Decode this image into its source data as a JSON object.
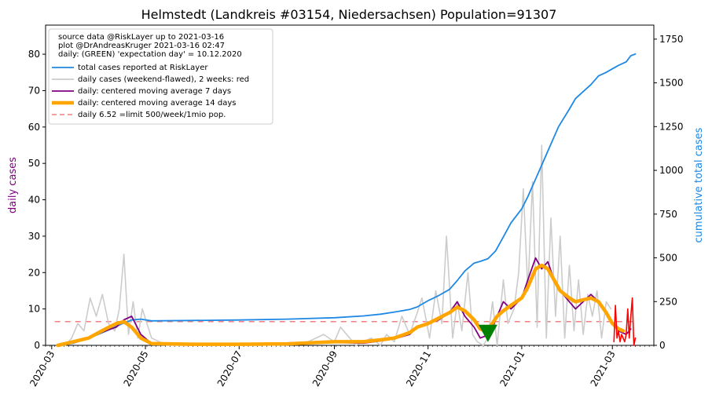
{
  "chart_data": {
    "type": "line",
    "title": "Helmstedt (Landkreis #03154, Niedersachsen) Population=91307",
    "ylabel_left": "daily cases",
    "ylabel_right": "cumulative total cases",
    "ylim_left": [
      0,
      88
    ],
    "ylim_right": [
      0,
      1830
    ],
    "yticks_left": [
      0,
      10,
      20,
      30,
      40,
      50,
      60,
      70,
      80
    ],
    "yticks_right": [
      0,
      250,
      500,
      750,
      1000,
      1250,
      1500,
      1750
    ],
    "xlim": [
      "2020-02-26",
      "2021-03-28"
    ],
    "xticks": [
      "2020-03",
      "2020-05",
      "2020-07",
      "2020-09",
      "2020-11",
      "2021-01",
      "2021-03"
    ],
    "grid": false,
    "legend_position": "top-left",
    "colors": {
      "total": "#1e88e5",
      "daily": "#cccccc",
      "ma7": "#800080",
      "ma14": "#ffa500",
      "limit": "#f08080",
      "recent": "#ff0000",
      "marker": "#008000"
    },
    "annotations": [
      "source data @RiskLayer up to 2021-03-16",
      "plot @DrAndreasKruger 2021-03-16 02:47",
      "daily: (GREEN) 'expectation day' = 10.12.2020"
    ],
    "legend": [
      {
        "key": "total",
        "label": "total cases reported at RiskLayer"
      },
      {
        "key": "daily",
        "label": "daily cases (weekend-flawed), 2 weeks: red"
      },
      {
        "key": "ma7",
        "label": "daily: centered moving average 7 days"
      },
      {
        "key": "ma14",
        "label": "daily: centered moving average 14 days"
      },
      {
        "key": "limit",
        "label": "daily 6.52 =limit 500/week/1mio pop."
      }
    ],
    "limit_value": 6.52,
    "limit_range": [
      "2020-03-03",
      "2021-03-16"
    ],
    "expectation_day": {
      "date": "2020-12-10",
      "value": 3.5
    },
    "total_cases": {
      "x": [
        "2020-03-05",
        "2020-03-15",
        "2020-03-25",
        "2020-04-05",
        "2020-04-15",
        "2020-04-22",
        "2020-04-28",
        "2020-05-05",
        "2020-06-01",
        "2020-07-01",
        "2020-08-01",
        "2020-09-01",
        "2020-09-20",
        "2020-10-01",
        "2020-10-10",
        "2020-10-20",
        "2020-10-25",
        "2020-11-01",
        "2020-11-08",
        "2020-11-15",
        "2020-11-20",
        "2020-11-25",
        "2020-12-01",
        "2020-12-05",
        "2020-12-10",
        "2020-12-15",
        "2020-12-20",
        "2020-12-25",
        "2021-01-01",
        "2021-01-05",
        "2021-01-10",
        "2021-01-15",
        "2021-01-20",
        "2021-01-25",
        "2021-02-01",
        "2021-02-05",
        "2021-02-10",
        "2021-02-15",
        "2021-02-20",
        "2021-02-25",
        "2021-03-01",
        "2021-03-05",
        "2021-03-10",
        "2021-03-13",
        "2021-03-16"
      ],
      "values": [
        0,
        12,
        40,
        80,
        120,
        145,
        150,
        140,
        142,
        145,
        150,
        158,
        168,
        178,
        190,
        205,
        220,
        255,
        285,
        320,
        370,
        425,
        470,
        480,
        495,
        540,
        620,
        700,
        780,
        850,
        950,
        1050,
        1150,
        1250,
        1350,
        1410,
        1450,
        1490,
        1540,
        1560,
        1580,
        1600,
        1620,
        1655,
        1665
      ]
    },
    "daily_cases": {
      "x": [
        "2020-03-10",
        "2020-03-14",
        "2020-03-18",
        "2020-03-22",
        "2020-03-26",
        "2020-03-30",
        "2020-04-03",
        "2020-04-07",
        "2020-04-11",
        "2020-04-14",
        "2020-04-17",
        "2020-04-20",
        "2020-04-23",
        "2020-04-26",
        "2020-04-29",
        "2020-05-05",
        "2020-05-15",
        "2020-06-15",
        "2020-07-15",
        "2020-08-15",
        "2020-08-25",
        "2020-09-01",
        "2020-09-05",
        "2020-09-15",
        "2020-09-25",
        "2020-10-01",
        "2020-10-05",
        "2020-10-10",
        "2020-10-15",
        "2020-10-20",
        "2020-10-25",
        "2020-10-28",
        "2020-11-02",
        "2020-11-06",
        "2020-11-10",
        "2020-11-13",
        "2020-11-17",
        "2020-11-20",
        "2020-11-23",
        "2020-11-27",
        "2020-11-30",
        "2020-12-03",
        "2020-12-07",
        "2020-12-10",
        "2020-12-13",
        "2020-12-16",
        "2020-12-20",
        "2020-12-23",
        "2020-12-27",
        "2020-12-30",
        "2021-01-02",
        "2021-01-05",
        "2021-01-08",
        "2021-01-11",
        "2021-01-14",
        "2021-01-17",
        "2021-01-20",
        "2021-01-23",
        "2021-01-26",
        "2021-01-29",
        "2021-02-01",
        "2021-02-04",
        "2021-02-07",
        "2021-02-10",
        "2021-02-13",
        "2021-02-16",
        "2021-02-19",
        "2021-02-22",
        "2021-02-25",
        "2021-02-28"
      ],
      "values": [
        0,
        2,
        6,
        4,
        13,
        8,
        14,
        6,
        4,
        10,
        25,
        3,
        12,
        2,
        10,
        2,
        0,
        0,
        0,
        1,
        3,
        1,
        5,
        0,
        2,
        0,
        3,
        1,
        8,
        3,
        9,
        13,
        2,
        15,
        6,
        30,
        2,
        12,
        4,
        20,
        3,
        1,
        0,
        2,
        12,
        0,
        18,
        6,
        10,
        20,
        43,
        15,
        45,
        5,
        55,
        2,
        35,
        8,
        30,
        2,
        22,
        4,
        18,
        3,
        14,
        8,
        15,
        2,
        12,
        10
      ]
    },
    "ma7": {
      "x": [
        "2020-03-05",
        "2020-03-15",
        "2020-03-25",
        "2020-04-05",
        "2020-04-12",
        "2020-04-17",
        "2020-04-22",
        "2020-04-28",
        "2020-05-05",
        "2020-06-01",
        "2020-07-01",
        "2020-08-01",
        "2020-09-01",
        "2020-09-20",
        "2020-10-01",
        "2020-10-10",
        "2020-10-20",
        "2020-10-25",
        "2020-11-01",
        "2020-11-08",
        "2020-11-15",
        "2020-11-20",
        "2020-11-25",
        "2020-12-01",
        "2020-12-05",
        "2020-12-08",
        "2020-12-12",
        "2020-12-16",
        "2020-12-20",
        "2020-12-25",
        "2021-01-01",
        "2021-01-05",
        "2021-01-10",
        "2021-01-14",
        "2021-01-18",
        "2021-01-22",
        "2021-01-26",
        "2021-02-01",
        "2021-02-05",
        "2021-02-10",
        "2021-02-15",
        "2021-02-20",
        "2021-02-25",
        "2021-03-01",
        "2021-03-05",
        "2021-03-10",
        "2021-03-13"
      ],
      "values": [
        0,
        1,
        2,
        4,
        5,
        7,
        8,
        3,
        0.5,
        0.3,
        0.2,
        0.3,
        0.8,
        0.6,
        1.2,
        1.8,
        3,
        5,
        6,
        7,
        9,
        12,
        8,
        5,
        2,
        2.5,
        4,
        8,
        12,
        10,
        13,
        18,
        24,
        21,
        23,
        18,
        15,
        12,
        10,
        12,
        14,
        12,
        9,
        6,
        4,
        3,
        4.5
      ]
    },
    "ma14": {
      "x": [
        "2020-03-05",
        "2020-03-15",
        "2020-03-25",
        "2020-04-05",
        "2020-04-12",
        "2020-04-17",
        "2020-04-22",
        "2020-04-28",
        "2020-05-05",
        "2020-06-01",
        "2020-07-01",
        "2020-08-01",
        "2020-09-01",
        "2020-09-20",
        "2020-10-01",
        "2020-10-10",
        "2020-10-20",
        "2020-10-25",
        "2020-11-01",
        "2020-11-08",
        "2020-11-15",
        "2020-11-20",
        "2020-11-25",
        "2020-12-01",
        "2020-12-05",
        "2020-12-08",
        "2020-12-12",
        "2020-12-16",
        "2020-12-20",
        "2020-12-25",
        "2021-01-01",
        "2021-01-05",
        "2021-01-10",
        "2021-01-14",
        "2021-01-18",
        "2021-01-22",
        "2021-01-26",
        "2021-02-01",
        "2021-02-05",
        "2021-02-10",
        "2021-02-15",
        "2021-02-20",
        "2021-02-25",
        "2021-03-01",
        "2021-03-05",
        "2021-03-08"
      ],
      "values": [
        0,
        1,
        2,
        4.5,
        6,
        6.5,
        5,
        2,
        0.5,
        0.3,
        0.3,
        0.4,
        1,
        1,
        1.5,
        2,
        3.5,
        5,
        6,
        7.5,
        9,
        10.5,
        9.5,
        7,
        4.5,
        4,
        5.5,
        8,
        9.5,
        11,
        13,
        16,
        21,
        22,
        21,
        18,
        15,
        13,
        12,
        12.5,
        13,
        12,
        9,
        6,
        4.5,
        4
      ]
    },
    "recent_daily": {
      "x": [
        "2021-03-02",
        "2021-03-03",
        "2021-03-04",
        "2021-03-05",
        "2021-03-06",
        "2021-03-07",
        "2021-03-08",
        "2021-03-09",
        "2021-03-10",
        "2021-03-11",
        "2021-03-12",
        "2021-03-13",
        "2021-03-14",
        "2021-03-15",
        "2021-03-16"
      ],
      "values": [
        1,
        11,
        2,
        4,
        1,
        3,
        2,
        1,
        3,
        10,
        2,
        8,
        13,
        0,
        2
      ]
    }
  }
}
